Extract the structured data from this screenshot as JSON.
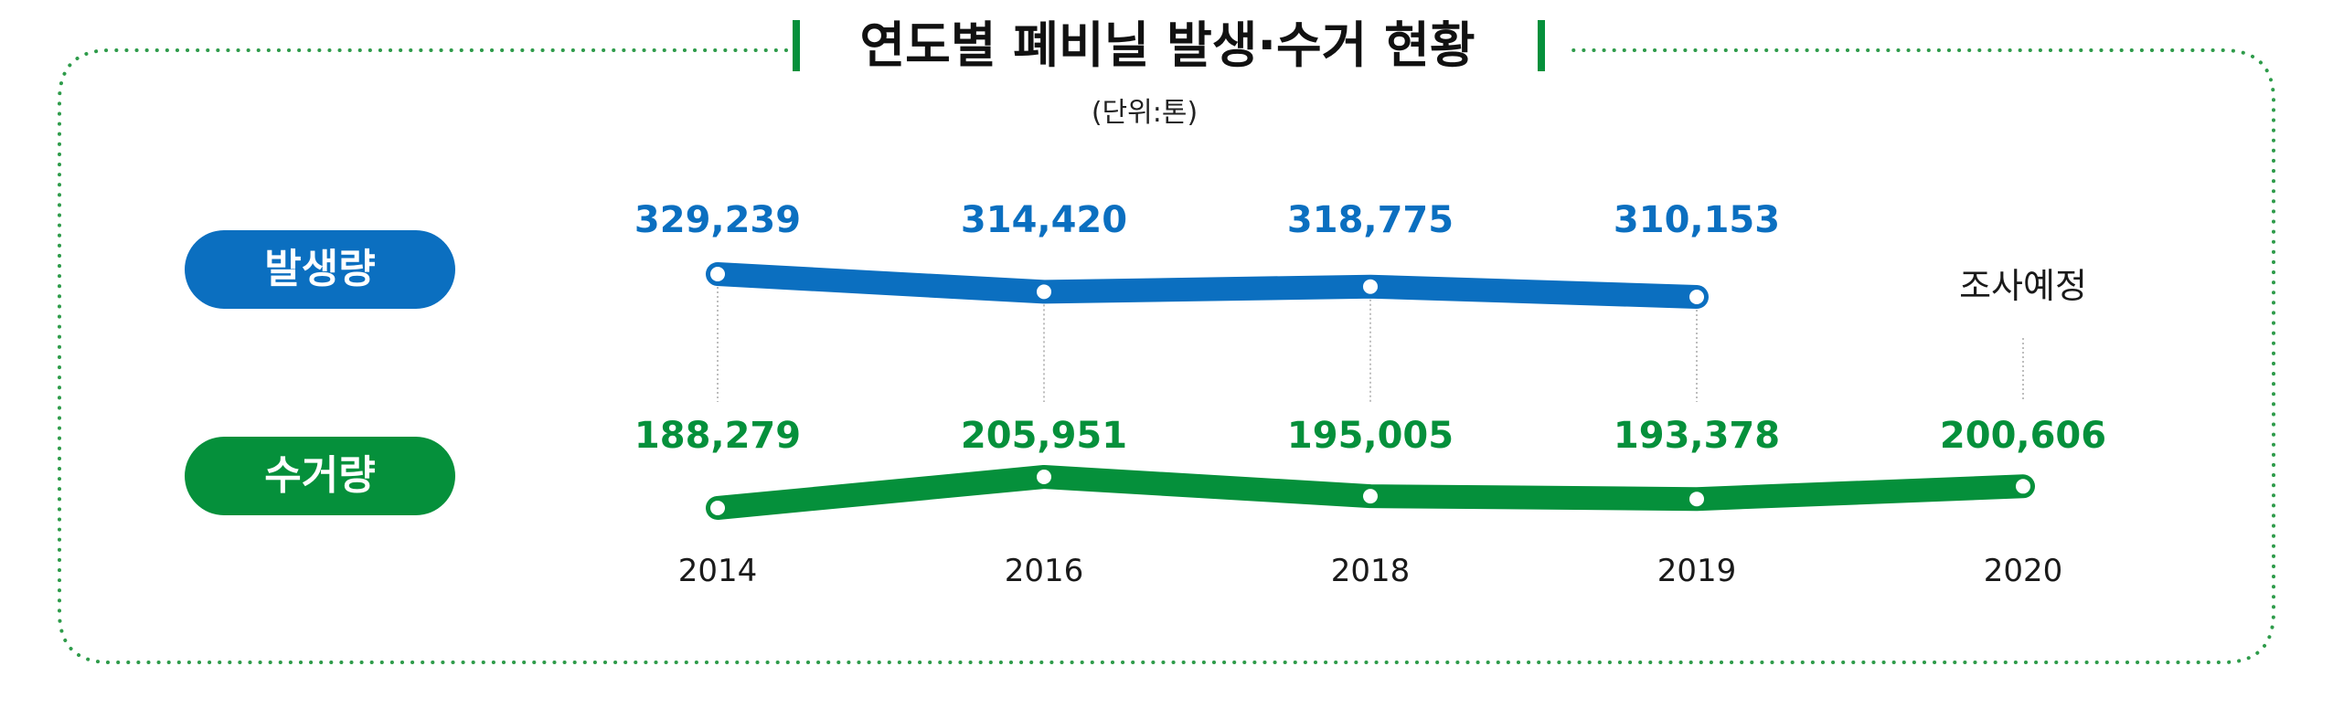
{
  "title": "연도별 폐비닐 발생·수거 현황",
  "unit": "(단위:톤)",
  "colors": {
    "generation": "#0B6FC0",
    "collection": "#05903B",
    "frame": "#2E9B4A",
    "text": "#1a1a1a"
  },
  "chart_data": {
    "type": "line",
    "categories": [
      "2014",
      "2016",
      "2018",
      "2019",
      "2020"
    ],
    "series": [
      {
        "name": "발생량",
        "values": [
          329239,
          314420,
          318775,
          310153,
          null
        ],
        "labels": [
          "329,239",
          "314,420",
          "318,775",
          "310,153",
          null
        ]
      },
      {
        "name": "수거량",
        "values": [
          188279,
          205951,
          195005,
          193378,
          200606
        ],
        "labels": [
          "188,279",
          "205,951",
          "195,005",
          "193,378",
          "200,606"
        ]
      }
    ],
    "annotations": [
      {
        "category": "2020",
        "series": "발생량",
        "text": "조사예정"
      }
    ]
  }
}
